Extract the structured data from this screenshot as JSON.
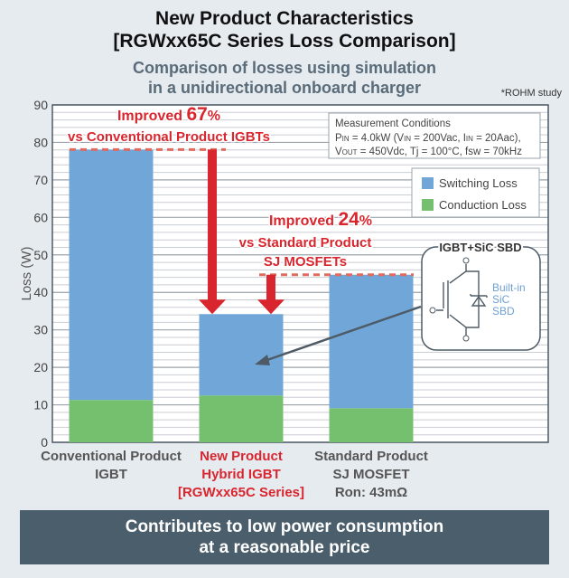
{
  "header": {
    "title_lines": [
      "New Product Characteristics",
      "[RGWxx65C Series Loss Comparison]"
    ],
    "subtitle_lines": [
      "Comparison of losses using simulation",
      "in a unidirectional onboard charger"
    ],
    "note": "*ROHM study"
  },
  "chart_data": {
    "type": "bar",
    "stacked": true,
    "ylabel": "Loss (W)",
    "ylim": [
      0,
      90
    ],
    "yticks": [
      0,
      10,
      20,
      30,
      40,
      50,
      60,
      70,
      80,
      90
    ],
    "grid": true,
    "categories": [
      {
        "lines": [
          "Conventional Product",
          "IGBT"
        ],
        "color": "#555555"
      },
      {
        "lines": [
          "New Product",
          "Hybrid IGBT",
          "[RGWxx65C Series]"
        ],
        "color": "#d9262e"
      },
      {
        "lines": [
          "Standard Product",
          "SJ MOSFET",
          "Ron: 43mΩ"
        ],
        "color": "#555555"
      }
    ],
    "series": [
      {
        "name": "Conduction Loss",
        "color": "#75c06f",
        "values": [
          11.3,
          12.5,
          9.1
        ]
      },
      {
        "name": "Switching Loss",
        "color": "#70a7d8",
        "values": [
          66.8,
          21.7,
          35.6
        ]
      }
    ],
    "legend": {
      "placement": "top-right",
      "order": [
        "Switching Loss",
        "Conduction Loss"
      ]
    },
    "conditions": {
      "title": "Measurement Conditions",
      "line1": [
        {
          "t": "P"
        },
        {
          "s": "IN"
        },
        {
          "t": " = 4.0kW (V"
        },
        {
          "s": "IN"
        },
        {
          "t": " = 200Vac, I"
        },
        {
          "s": "IN"
        },
        {
          "t": " =  20Aac),"
        }
      ],
      "line2": [
        {
          "t": "V"
        },
        {
          "s": "OUT"
        },
        {
          "t": " = 450Vdc, Tj = 100°C, fsw = 70kHz"
        }
      ]
    },
    "annotations": [
      {
        "line1": "Improved ",
        "big": "67",
        "pct": "%",
        "line2": "vs Conventional Product IGBTs"
      },
      {
        "line1": "Improved ",
        "big": "24",
        "pct": "%",
        "line2": "vs Standard Product",
        "line3": "SJ MOSFETs"
      }
    ],
    "inset": {
      "title": "IGBT+SiC SBD",
      "label_lines": [
        "Built-in",
        "SiC",
        "SBD"
      ]
    },
    "accent": "#d9262e"
  },
  "footer": {
    "banner_lines": [
      "Contributes to low power consumption",
      "at a reasonable price"
    ]
  }
}
